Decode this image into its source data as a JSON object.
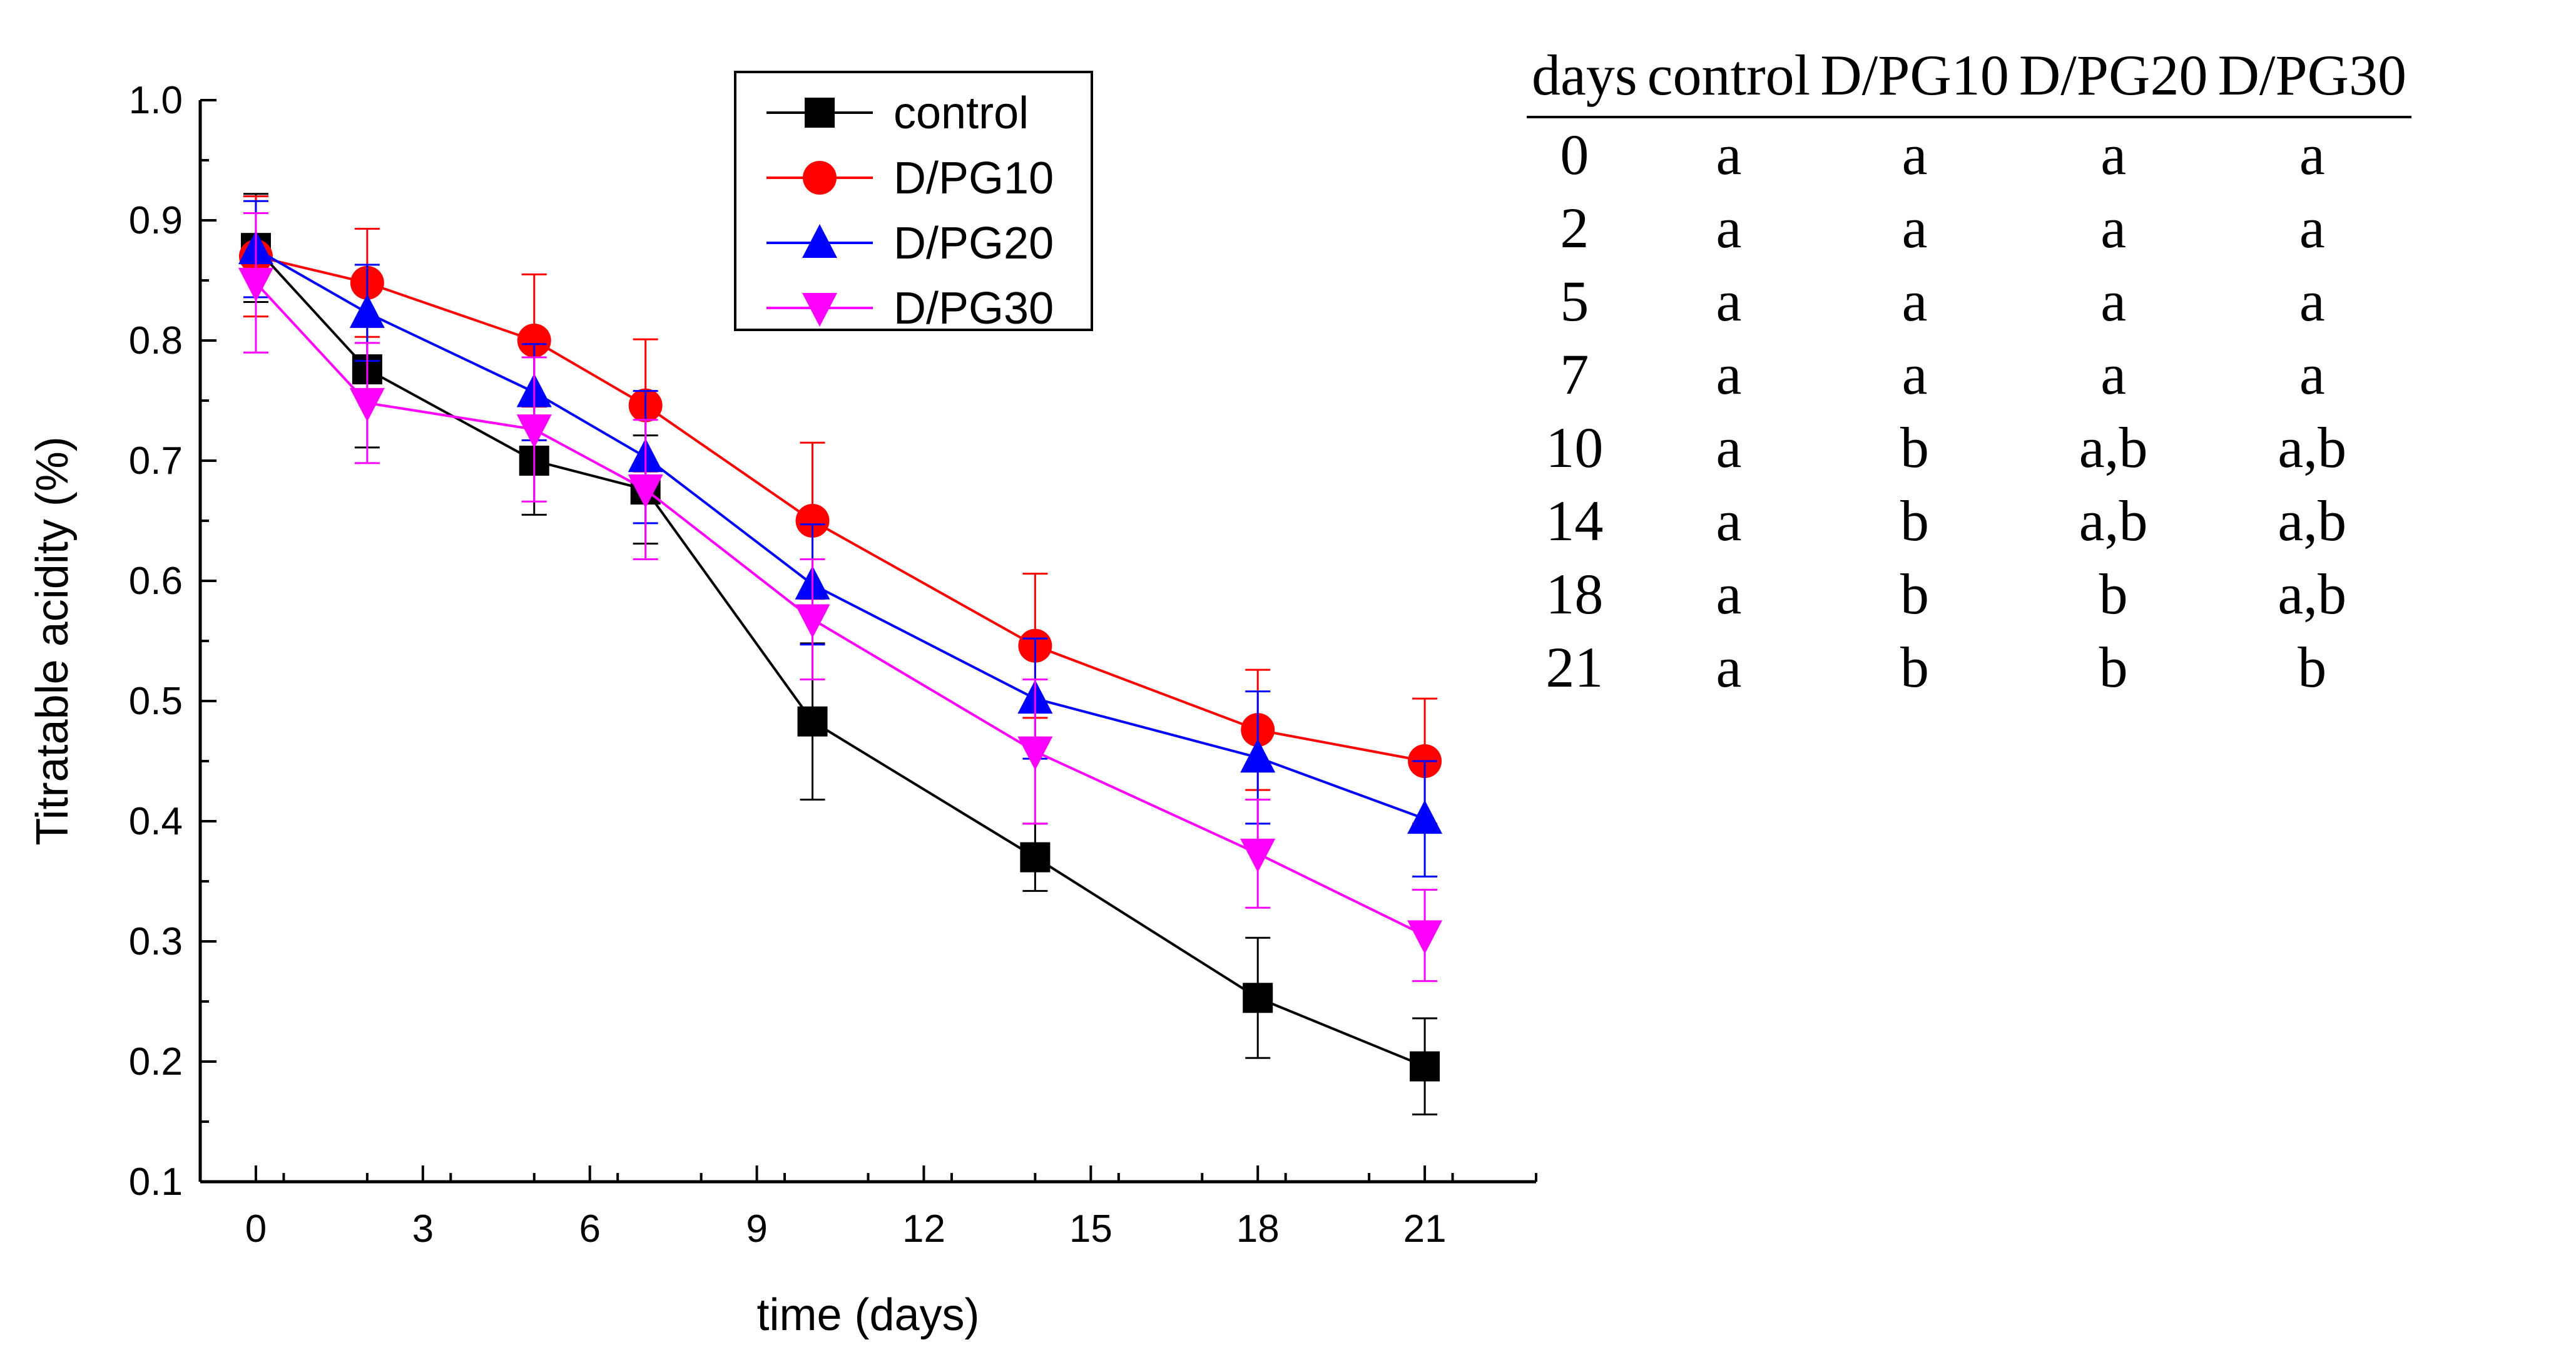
{
  "chart_data": {
    "type": "line",
    "title": "",
    "xlabel": "time (days)",
    "ylabel": "Titratable acidity (%)",
    "xlim": [
      -1,
      23
    ],
    "ylim": [
      0.1,
      1.0
    ],
    "xticks": [
      0,
      3,
      6,
      9,
      12,
      15,
      18,
      21
    ],
    "xtick_labels": [
      "0",
      "3",
      "6",
      "9",
      "12",
      "15",
      "18",
      "21"
    ],
    "yticks": [
      0.1,
      0.2,
      0.3,
      0.4,
      0.5,
      0.6,
      0.7,
      0.8,
      0.9,
      1.0
    ],
    "ytick_labels": [
      "0.1",
      "0.2",
      "0.3",
      "0.4",
      "0.5",
      "0.6",
      "0.7",
      "0.8",
      "0.9",
      "1.0"
    ],
    "x": [
      0,
      2,
      5,
      7,
      10,
      14,
      18,
      21
    ],
    "legend_position": "top-center",
    "series": [
      {
        "name": "control",
        "color": "#000000",
        "marker": "square",
        "values": [
          0.877,
          0.776,
          0.7,
          0.676,
          0.483,
          0.37,
          0.253,
          0.196
        ],
        "errors": [
          0.045,
          0.065,
          0.045,
          0.045,
          0.065,
          0.028,
          0.05,
          0.04
        ]
      },
      {
        "name": "D/PG10",
        "color": "#ff0000",
        "marker": "circle",
        "values": [
          0.87,
          0.848,
          0.8,
          0.746,
          0.65,
          0.546,
          0.476,
          0.45
        ],
        "errors": [
          0.05,
          0.045,
          0.055,
          0.055,
          0.065,
          0.06,
          0.05,
          0.052
        ]
      },
      {
        "name": "D/PG20",
        "color": "#0000ff",
        "marker": "triangle-up",
        "values": [
          0.876,
          0.823,
          0.757,
          0.703,
          0.597,
          0.502,
          0.453,
          0.402
        ],
        "errors": [
          0.04,
          0.04,
          0.04,
          0.055,
          0.05,
          0.05,
          0.055,
          0.048
        ]
      },
      {
        "name": "D/PG30",
        "color": "#ff00ff",
        "marker": "triangle-down",
        "values": [
          0.848,
          0.748,
          0.726,
          0.676,
          0.568,
          0.458,
          0.373,
          0.305
        ],
        "errors": [
          0.058,
          0.05,
          0.06,
          0.058,
          0.05,
          0.06,
          0.045,
          0.038
        ]
      }
    ]
  },
  "table": {
    "headers": [
      "days",
      "control",
      "D/PG10",
      "D/PG20",
      "D/PG30"
    ],
    "rows": [
      [
        "0",
        "a",
        "a",
        "a",
        "a"
      ],
      [
        "2",
        "a",
        "a",
        "a",
        "a"
      ],
      [
        "5",
        "a",
        "a",
        "a",
        "a"
      ],
      [
        "7",
        "a",
        "a",
        "a",
        "a"
      ],
      [
        "10",
        "a",
        "b",
        "a,b",
        "a,b"
      ],
      [
        "14",
        "a",
        "b",
        "a,b",
        "a,b"
      ],
      [
        "18",
        "a",
        "b",
        "b",
        "a,b"
      ],
      [
        "21",
        "a",
        "b",
        "b",
        "b"
      ]
    ]
  }
}
